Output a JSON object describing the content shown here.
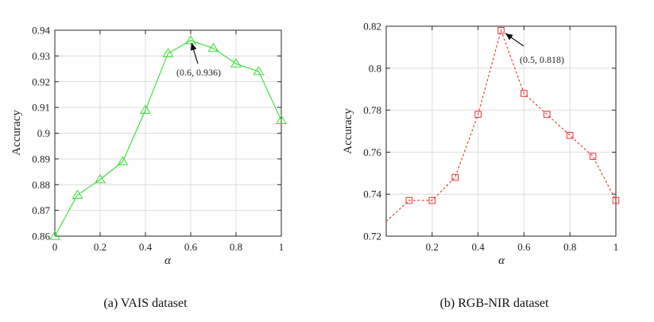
{
  "chart_data": [
    {
      "type": "line",
      "caption": "(a) VAIS dataset",
      "xlabel": "α",
      "ylabel": "Accuracy",
      "xlim": [
        0,
        1
      ],
      "ylim": [
        0.86,
        0.94
      ],
      "xticks": [
        0,
        0.2,
        0.4,
        0.6,
        0.8,
        1
      ],
      "xtick_labels": [
        "0",
        "0.2",
        "0.4",
        "0.6",
        "0.8",
        "1"
      ],
      "yticks": [
        0.86,
        0.87,
        0.88,
        0.89,
        0.9,
        0.91,
        0.92,
        0.93,
        0.94
      ],
      "ytick_labels": [
        "0.86",
        "0.87",
        "0.88",
        "0.89",
        "0.9",
        "0.91",
        "0.92",
        "0.93",
        "0.94"
      ],
      "grid": true,
      "series": [
        {
          "name": "VAIS",
          "color": "#33dd33",
          "line_style": "solid",
          "marker": "triangle",
          "x": [
            0,
            0.1,
            0.2,
            0.3,
            0.4,
            0.5,
            0.6,
            0.7,
            0.8,
            0.9,
            1.0
          ],
          "values": [
            0.86,
            0.876,
            0.882,
            0.889,
            0.909,
            0.931,
            0.936,
            0.933,
            0.927,
            0.924,
            0.905
          ]
        }
      ],
      "annotation": {
        "text": "(0.6, 0.936)",
        "x": 0.6,
        "y": 0.936
      }
    },
    {
      "type": "line",
      "caption": "(b) RGB-NIR dataset",
      "xlabel": "α",
      "ylabel": "Accuracy",
      "xlim": [
        0,
        1
      ],
      "ylim": [
        0.72,
        0.82
      ],
      "xticks": [
        0.2,
        0.4,
        0.6,
        0.8,
        1
      ],
      "xtick_labels": [
        "0.2",
        "0.4",
        "0.6",
        "0.8",
        "1"
      ],
      "yticks": [
        0.72,
        0.74,
        0.76,
        0.78,
        0.8,
        0.82
      ],
      "ytick_labels": [
        "0.72",
        "0.74",
        "0.76",
        "0.78",
        "0.8",
        "0.82"
      ],
      "grid": true,
      "series": [
        {
          "name": "RGB-NIR",
          "color": "#ee3333",
          "line_style": "dashed",
          "marker": "square",
          "line_start": {
            "x": 0,
            "y": 0.727
          },
          "x": [
            0.1,
            0.2,
            0.3,
            0.4,
            0.5,
            0.6,
            0.7,
            0.8,
            0.9,
            1.0
          ],
          "values": [
            0.737,
            0.737,
            0.748,
            0.778,
            0.818,
            0.788,
            0.778,
            0.768,
            0.758,
            0.737
          ]
        }
      ],
      "annotation": {
        "text": "(0.5, 0.818)",
        "x": 0.5,
        "y": 0.818
      }
    }
  ]
}
